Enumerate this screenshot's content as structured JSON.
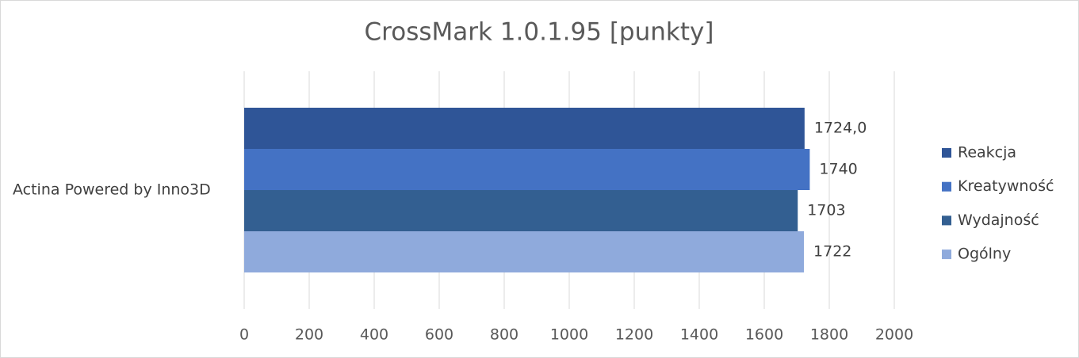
{
  "chart_data": {
    "type": "bar",
    "orientation": "horizontal",
    "title": "CrossMark 1.0.1.95 [punkty]",
    "categories": [
      "Actina Powered by Inno3D"
    ],
    "series": [
      {
        "name": "Reakcja",
        "color": "#2f5597",
        "values": [
          1724
        ],
        "value_labels": [
          "1724,0"
        ]
      },
      {
        "name": "Kreatywność",
        "color": "#4472c4",
        "values": [
          1740
        ]
      },
      {
        "name": "Wydajność",
        "color": "#335f91",
        "values": [
          1703
        ]
      },
      {
        "name": "Ogólny",
        "color": "#8faadc",
        "values": [
          1722
        ]
      }
    ],
    "xlim": [
      0,
      2000
    ],
    "xticks": [
      0,
      200,
      400,
      600,
      800,
      1000,
      1200,
      1400,
      1600,
      1800,
      2000
    ],
    "grid": true,
    "legend": "right"
  }
}
